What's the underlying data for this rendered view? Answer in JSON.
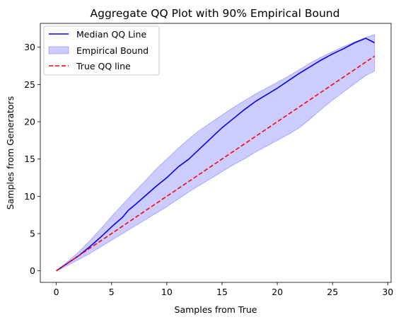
{
  "chart_data": {
    "type": "line",
    "title": "Aggregate QQ Plot with 90% Empirical Bound",
    "xlabel": "Samples from True",
    "ylabel": "Samples from Generators",
    "xlim": [
      -1.45,
      30.3
    ],
    "ylim": [
      -1.55,
      33.2
    ],
    "xticks": [
      0,
      5,
      10,
      15,
      20,
      25,
      30
    ],
    "yticks": [
      0,
      5,
      10,
      15,
      20,
      25,
      30
    ],
    "grid": false,
    "legend_position": "top-left",
    "series": [
      {
        "name": "Median QQ Line",
        "kind": "line",
        "color": "#0000ff",
        "x": [
          0,
          1,
          2,
          3,
          4,
          5,
          6,
          6.5,
          7,
          8,
          9,
          10,
          11,
          12,
          13,
          14,
          15,
          16,
          17,
          18,
          19,
          20,
          21,
          22,
          23,
          24,
          25,
          26,
          27,
          28,
          28.8
        ],
        "y": [
          0,
          1.0,
          2.0,
          3.2,
          4.5,
          5.9,
          7.2,
          8.1,
          8.7,
          10.0,
          11.3,
          12.5,
          13.9,
          15.0,
          16.4,
          17.8,
          19.2,
          20.4,
          21.6,
          22.7,
          23.6,
          24.5,
          25.5,
          26.5,
          27.4,
          28.3,
          29.1,
          29.8,
          30.6,
          31.2,
          30.6
        ]
      },
      {
        "name": "Empirical Bound",
        "kind": "band",
        "color": "#0000ff",
        "opacity": 0.2,
        "x": [
          0,
          1,
          2,
          3,
          4,
          5,
          6,
          7,
          8,
          9,
          10,
          11,
          12,
          13,
          14,
          15,
          16,
          17,
          18,
          19,
          20,
          21,
          22,
          23,
          24,
          25,
          26,
          27,
          28,
          28.8
        ],
        "lower": [
          0,
          0.7,
          1.5,
          2.3,
          3.2,
          4.1,
          5.0,
          5.9,
          6.8,
          7.7,
          8.6,
          9.6,
          10.6,
          11.5,
          12.4,
          13.3,
          14.2,
          15.0,
          15.9,
          16.7,
          17.5,
          18.3,
          19.2,
          20.4,
          21.7,
          22.9,
          24.0,
          25.1,
          26.2,
          26.8
        ],
        "upper": [
          0,
          1.2,
          2.5,
          4.0,
          5.6,
          7.3,
          8.9,
          10.5,
          12.0,
          13.6,
          15.0,
          16.4,
          17.7,
          18.9,
          19.9,
          20.9,
          21.9,
          22.8,
          23.7,
          24.5,
          25.3,
          26.1,
          27.0,
          27.9,
          28.7,
          29.4,
          30.1,
          30.7,
          31.3,
          31.7
        ]
      },
      {
        "name": "True QQ line",
        "kind": "dashed-line",
        "color": "#ff0000",
        "x": [
          0,
          28.8
        ],
        "y": [
          0,
          28.8
        ]
      }
    ]
  }
}
